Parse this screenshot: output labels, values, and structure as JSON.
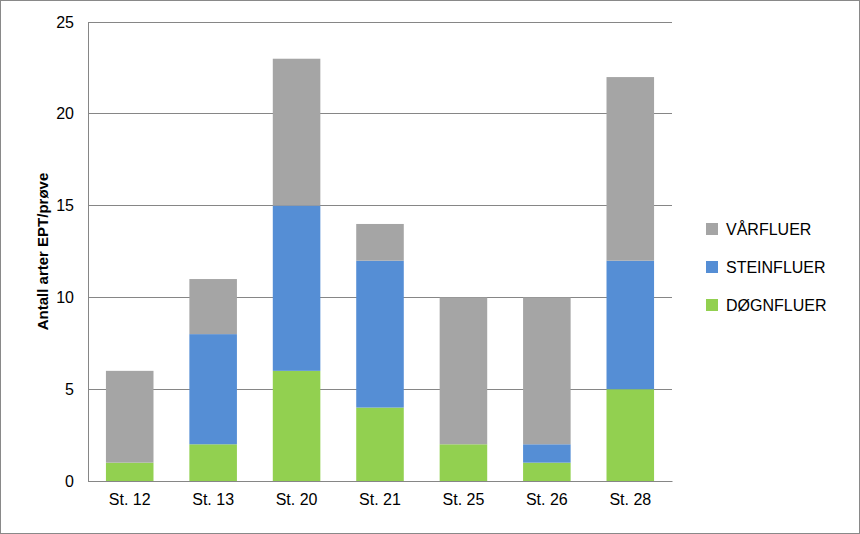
{
  "chart_data": {
    "type": "bar",
    "stacked": true,
    "y_label": "Antall arter EPT/prøve",
    "categories": [
      "St. 12",
      "St. 13",
      "St. 20",
      "St. 21",
      "St. 25",
      "St. 26",
      "St. 28"
    ],
    "series": [
      {
        "name": "DØGNFLUER",
        "color": "#92d050",
        "values": [
          1,
          2,
          6,
          4,
          2,
          1,
          5
        ]
      },
      {
        "name": "STEINFLUER",
        "color": "#558ed5",
        "values": [
          0,
          6,
          9,
          8,
          0,
          1,
          7
        ]
      },
      {
        "name": "VÅRFLUER",
        "color": "#a5a5a5",
        "values": [
          5,
          3,
          8,
          2,
          8,
          8,
          10
        ]
      }
    ],
    "ylim": [
      0,
      25
    ],
    "yticks": [
      0,
      5,
      10,
      15,
      20,
      25
    ],
    "grid": true,
    "legend": "right"
  }
}
